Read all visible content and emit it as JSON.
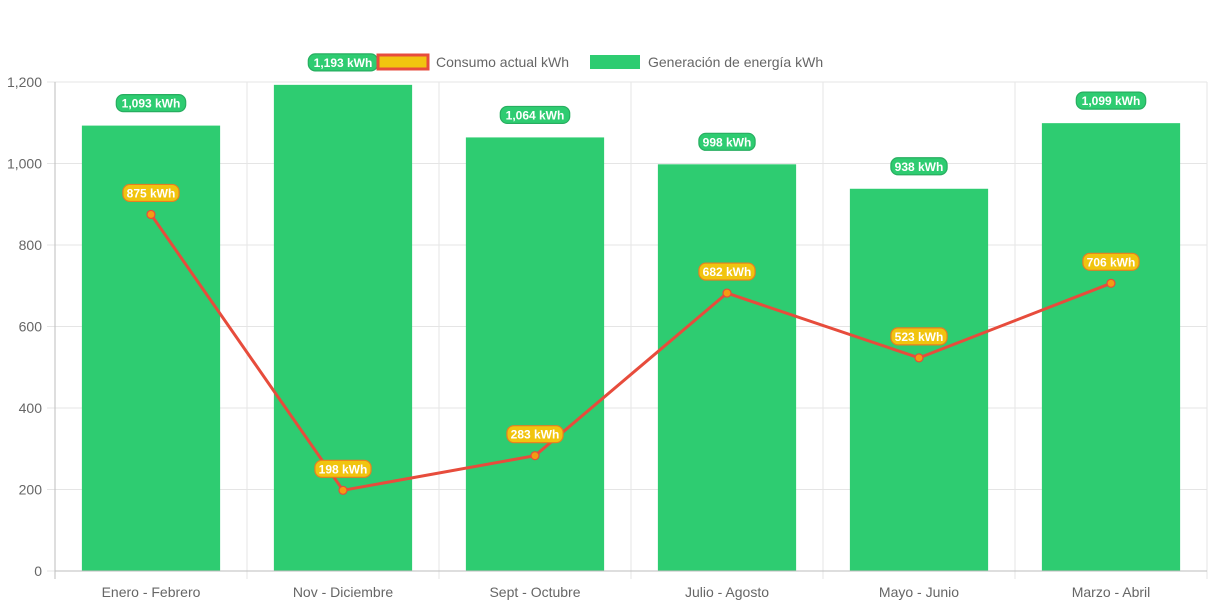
{
  "chart_data": {
    "type": "bar",
    "categories": [
      "Enero - Febrero",
      "Nov - Diciembre",
      "Sept - Octubre",
      "Julio - Agosto",
      "Mayo - Junio",
      "Marzo - Abril"
    ],
    "series": [
      {
        "name": "Consumo actual kWh",
        "type": "line",
        "values": [
          875,
          198,
          283,
          682,
          523,
          706
        ],
        "labels": [
          "875 kWh",
          "198 kWh",
          "283 kWh",
          "682 kWh",
          "523 kWh",
          "706 kWh"
        ],
        "color": "#e74c3c",
        "legend_fill": "#f1c40f"
      },
      {
        "name": "Generación de energía kWh",
        "type": "bar",
        "values": [
          1093,
          1193,
          1064,
          998,
          938,
          1099
        ],
        "labels": [
          "1,093 kWh",
          "1,193 kWh",
          "1,064 kWh",
          "998 kWh",
          "938 kWh",
          "1,099 kWh"
        ],
        "color": "#2ecc71"
      }
    ],
    "y_ticks": [
      "0",
      "200",
      "400",
      "600",
      "800",
      "1,000",
      "1,200"
    ],
    "ylim": [
      0,
      1200
    ],
    "grid": true,
    "legend_position": "top"
  },
  "colors": {
    "bar": "#2ecc71",
    "line": "#e74c3c",
    "point": "#f39c12",
    "consumo_label_bg": "#f1c40f",
    "consumo_label_border": "#e67e22",
    "grid": "#e5e5e5",
    "axis": "#bdbdbd",
    "text": "#666666"
  }
}
